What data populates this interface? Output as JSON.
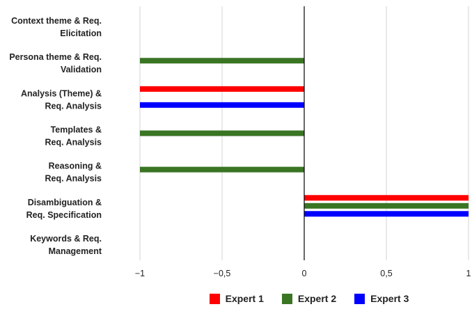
{
  "chart_data": {
    "type": "bar",
    "orientation": "horizontal",
    "title": "",
    "xlabel": "",
    "ylabel": "",
    "xlim": [
      -1,
      1
    ],
    "xticks": [
      -1,
      -0.5,
      0,
      0.5,
      1
    ],
    "xtick_labels": [
      "−1",
      "−0,5",
      "0",
      "0,5",
      "1"
    ],
    "grid": "vertical gridlines",
    "legend_position": "bottom",
    "categories": [
      [
        "Context theme & Req.",
        "Elicitation"
      ],
      [
        "Persona theme & Req.",
        "Validation"
      ],
      [
        "Analysis (Theme) &",
        "Req. Analysis"
      ],
      [
        "Templates &",
        "Req. Analysis"
      ],
      [
        "Reasoning &",
        "Req. Analysis"
      ],
      [
        "Disambiguation &",
        "Req. Specification"
      ],
      [
        "Keywords & Req.",
        "Management"
      ]
    ],
    "series": [
      {
        "name": "Expert 1",
        "color": "#ff0000",
        "values": [
          0,
          0,
          -1,
          0,
          0,
          1,
          0
        ]
      },
      {
        "name": "Expert 2",
        "color": "#3a7524",
        "values": [
          0,
          -1,
          0,
          -1,
          -1,
          1,
          0
        ]
      },
      {
        "name": "Expert 3",
        "color": "#0000ff",
        "values": [
          0,
          0,
          -1,
          0,
          0,
          1,
          0
        ]
      }
    ]
  }
}
